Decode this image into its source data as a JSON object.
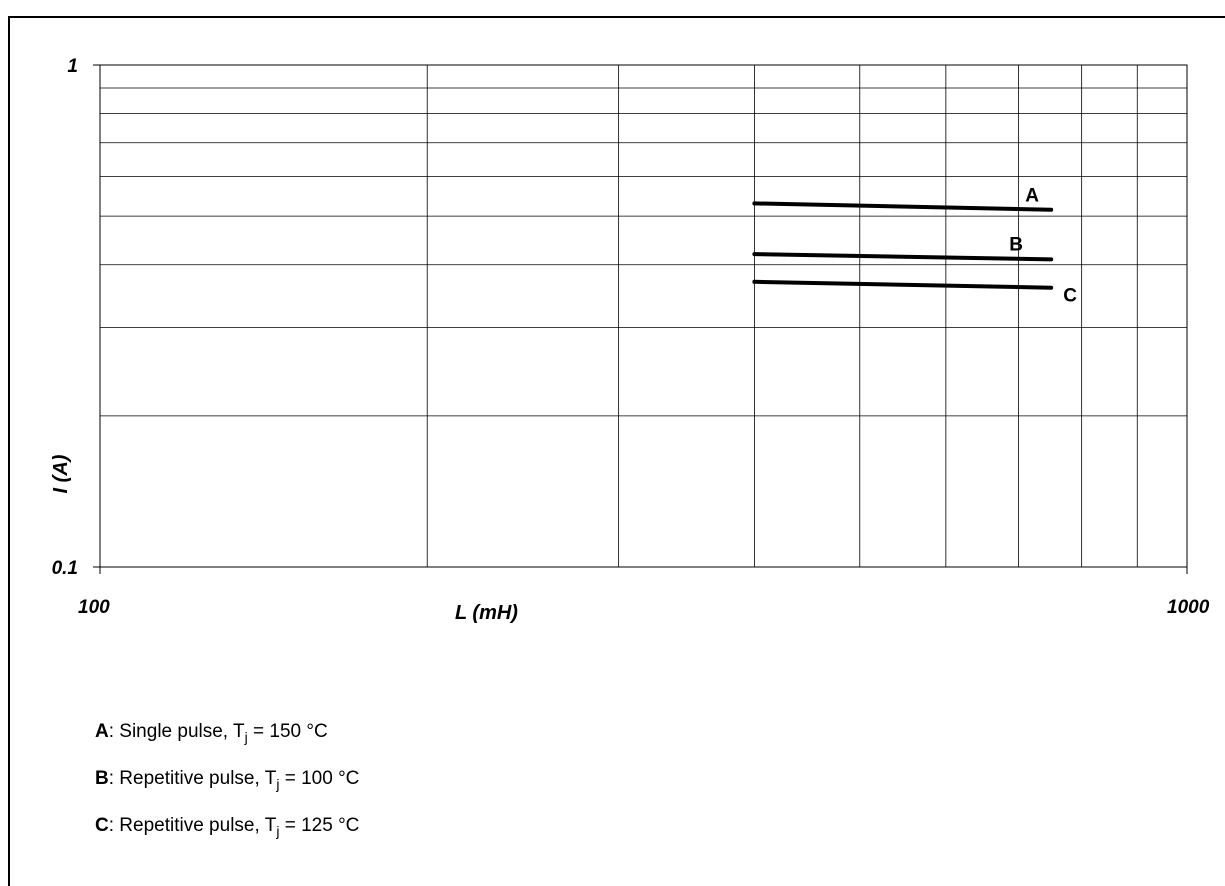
{
  "chart_data": {
    "type": "line",
    "title": "",
    "xlabel": "L (mH)",
    "ylabel": "I (A)",
    "xscale": "log",
    "yscale": "log",
    "xlim": [
      100,
      1000
    ],
    "ylim": [
      0.1,
      1
    ],
    "x_tick_labels": [
      "100",
      "1000"
    ],
    "y_tick_labels": [
      "1",
      "0.1"
    ],
    "grid": true,
    "series": [
      {
        "name": "A",
        "x": [
          400,
          750
        ],
        "y": [
          0.53,
          0.515
        ]
      },
      {
        "name": "B",
        "x": [
          400,
          750
        ],
        "y": [
          0.42,
          0.41
        ]
      },
      {
        "name": "C",
        "x": [
          400,
          750
        ],
        "y": [
          0.37,
          0.36
        ]
      }
    ]
  },
  "legend": {
    "a": {
      "key": "A",
      "text_before": ": Single pulse, T",
      "sub": "j",
      "text_after": " = 150 °C"
    },
    "b": {
      "key": "B",
      "text_before": ": Repetitive pulse, T",
      "sub": "j",
      "text_after": " = 100 °C"
    },
    "c": {
      "key": "C",
      "text_before": ": Repetitive pulse, T",
      "sub": "j",
      "text_after": " = 125 °C"
    }
  }
}
